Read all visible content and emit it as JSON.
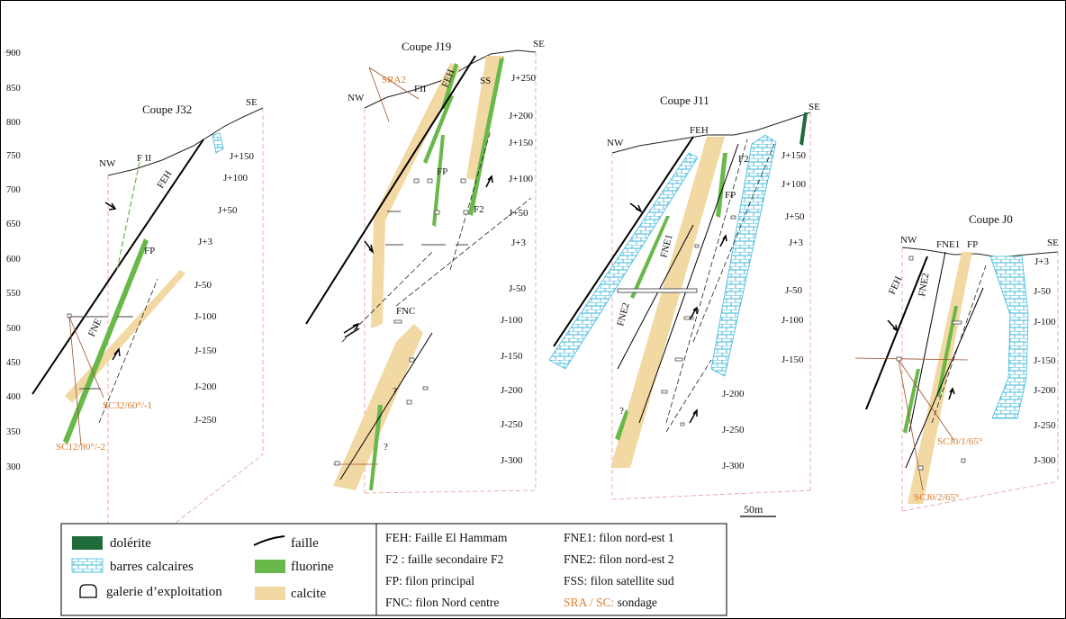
{
  "elevation_axis": {
    "labels": [
      "900",
      "850",
      "800",
      "750",
      "700",
      "650",
      "600",
      "550",
      "500",
      "450",
      "400",
      "350",
      "300"
    ]
  },
  "sections": [
    {
      "title": "Coupe J32",
      "labels": {
        "nw": "NW",
        "se": "SE",
        "fII": "F II",
        "feh": "FEH",
        "fp": "FP",
        "fne": "FNE",
        "sc1": "SC32/60°/-1",
        "sc2": "SC12/80°/-2"
      },
      "levels": [
        "J+150",
        "J+100",
        "J+50",
        "J+3",
        "J-50",
        "J-100",
        "J-150",
        "J-200",
        "J-250"
      ]
    },
    {
      "title": "Coupe J19",
      "labels": {
        "nw": "NW",
        "se": "SE",
        "sra2": "SRA2",
        "fII": "FII",
        "feh": "FEH",
        "ss": "SS",
        "fp": "FP",
        "f2": "F2",
        "fnc": "FNC",
        "q1": "?",
        "q2": "?"
      },
      "levels": [
        "J+250",
        "J+200",
        "J+150",
        "J+100",
        "J+50",
        "J+3",
        "J-50",
        "J-100",
        "J-150",
        "J-200",
        "J-250",
        "J-300"
      ]
    },
    {
      "title": "Coupe J11",
      "labels": {
        "nw": "NW",
        "se": "SE",
        "feh": "FEH",
        "f2": "F2",
        "fp": "FP",
        "fne1": "FNE1",
        "fne2": "FNE2",
        "q": "?"
      },
      "levels": [
        "J+150",
        "J+100",
        "J+50",
        "J+3",
        "J-50",
        "J-100",
        "J-150",
        "J-200",
        "J-250",
        "J-300"
      ]
    },
    {
      "title": "Coupe J0",
      "labels": {
        "nw": "NW",
        "se": "SE",
        "feh": "FEH",
        "fne1": "FNE1",
        "fne2": "FNE2",
        "fp": "FP",
        "sc1": "SCJ0/1/65°",
        "sc2": "SCJ0/2/65°"
      },
      "levels": [
        "J+3",
        "J-50",
        "J-100",
        "J-150",
        "J-200",
        "J-250",
        "J-300"
      ]
    }
  ],
  "scale_bar": "50m",
  "legend": {
    "symbols": [
      {
        "name": "dolerite",
        "label": "dolérite",
        "color": "#1f6b3a"
      },
      {
        "name": "barres",
        "label": "barres calcaires",
        "color": "#5ec8e0"
      },
      {
        "name": "galerie",
        "label": "galerie d’exploitation"
      },
      {
        "name": "faille",
        "label": "faille"
      },
      {
        "name": "fluorine",
        "label": "fluorine",
        "color": "#69b84a"
      },
      {
        "name": "calcite",
        "label": "calcite",
        "color": "#f2d9a4"
      }
    ],
    "abbreviations_col1": [
      "FEH: Faille El Hammam",
      "F2 : faille secondaire F2",
      "FP: filon principal",
      "FNC: filon Nord centre"
    ],
    "abbreviations_col2": [
      "FNE1: filon nord-est 1",
      "FNE2: filon nord-est 2",
      "FSS: filon satellite sud"
    ],
    "sondage": {
      "key": "SRA / SC:",
      "text": " sondage",
      "key_color": "#e07b2a"
    }
  }
}
